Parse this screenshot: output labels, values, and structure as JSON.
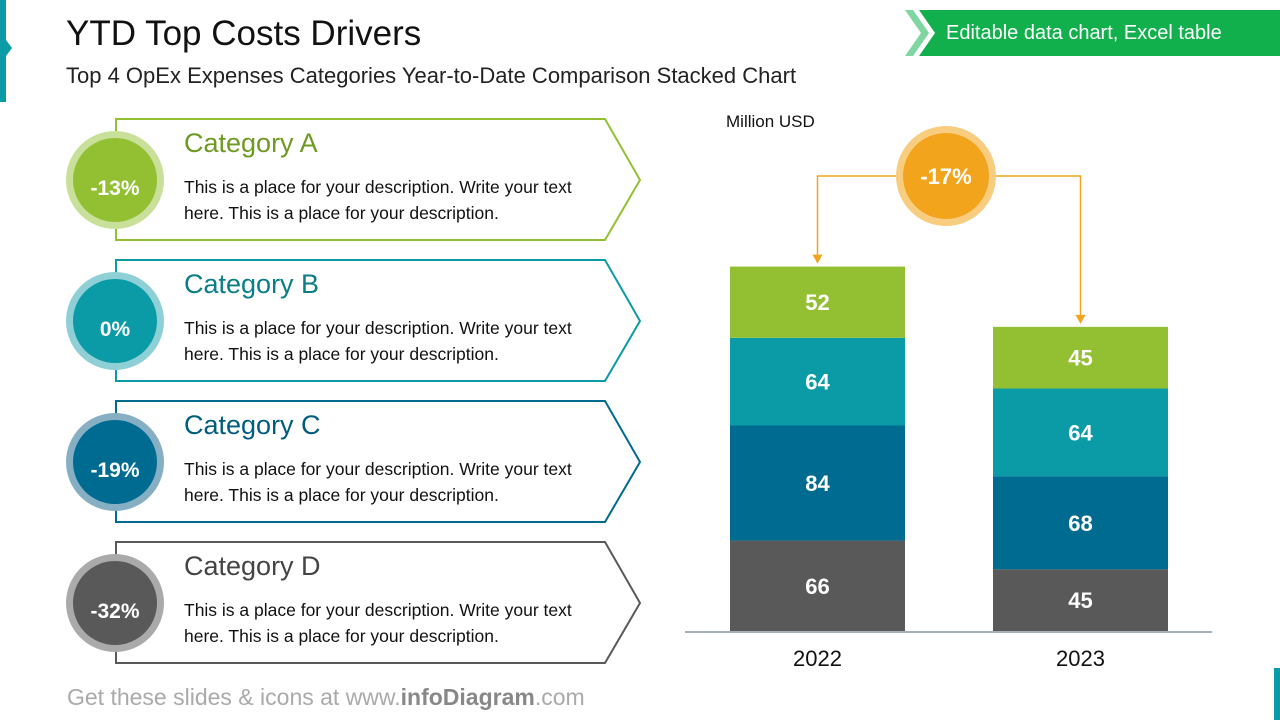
{
  "header": {
    "title": "YTD Top Costs Drivers",
    "subtitle": "Top 4 OpEx Expenses Categories Year-to-Date Comparison Stacked Chart"
  },
  "banner": {
    "label": "Editable data chart, Excel table",
    "color": "#12B04C"
  },
  "categories": [
    {
      "title": "Category A",
      "change": "-13%",
      "description": "This is a place for your description. Write your text here. This is a place for your description.",
      "color": "#93C032",
      "title_color": "#6E9A22",
      "ring": "#C9E09A"
    },
    {
      "title": "Category B",
      "change": "0%",
      "description": "This is a place for your description. Write your text here. This is a place for your description.",
      "color": "#0A9BA6",
      "title_color": "#0A7E88",
      "ring": "#8FD0D6"
    },
    {
      "title": "Category C",
      "change": "-19%",
      "description": "This is a place for your description. Write your text here. This is a place for your description.",
      "color": "#006B91",
      "title_color": "#005D7E",
      "ring": "#86AFC3"
    },
    {
      "title": "Category D",
      "change": "-32%",
      "description": "This is a place for your description. Write your text here. This is a place for your description.",
      "color": "#595959",
      "title_color": "#444444",
      "ring": "#AAAAAA"
    }
  ],
  "chart_data": {
    "type": "bar",
    "stacked": true,
    "unit_label": "Million USD",
    "categories": [
      "2022",
      "2023"
    ],
    "series": [
      {
        "color": "#595959",
        "values": [
          66,
          45
        ]
      },
      {
        "color": "#006B91",
        "values": [
          84,
          68
        ]
      },
      {
        "color": "#0A9BA6",
        "values": [
          64,
          64
        ]
      },
      {
        "color": "#93C032",
        "values": [
          52,
          45
        ]
      }
    ],
    "annotation": {
      "label": "-17%",
      "color": "#F2A51C",
      "ring": "#F8CD80"
    }
  },
  "footer": {
    "prefix": "Get these slides & icons at www.",
    "brand": "infoDiagram",
    "suffix": ".com"
  }
}
